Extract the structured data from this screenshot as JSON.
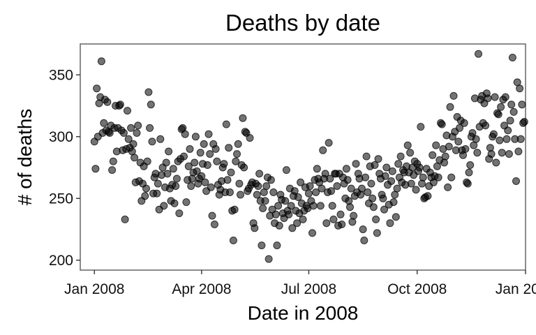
{
  "chart_data": {
    "type": "scatter",
    "title": "Deaths by date",
    "xlabel": "Date in 2008",
    "ylabel": "# of deaths",
    "x_ticks": [
      {
        "date": "2008-01-01",
        "label": "Jan 2008"
      },
      {
        "date": "2008-04-01",
        "label": "Apr 2008"
      },
      {
        "date": "2008-07-01",
        "label": "Jul 2008"
      },
      {
        "date": "2008-10-01",
        "label": "Oct 2008"
      },
      {
        "date": "2009-01-01",
        "label": "Jan 2009"
      }
    ],
    "y_ticks": [
      200,
      250,
      300,
      350
    ],
    "xlim": [
      "2007-12-20",
      "2009-01-01"
    ],
    "ylim": [
      192,
      375
    ],
    "grid": false,
    "point_color": "#000000",
    "point_opacity": 0.55,
    "points": [
      [
        "2008-01-01",
        296
      ],
      [
        "2008-01-02",
        274
      ],
      [
        "2008-01-03",
        339
      ],
      [
        "2008-01-04",
        300
      ],
      [
        "2008-01-05",
        327
      ],
      [
        "2008-01-06",
        332
      ],
      [
        "2008-01-07",
        361
      ],
      [
        "2008-01-08",
        303
      ],
      [
        "2008-01-09",
        311
      ],
      [
        "2008-01-10",
        330
      ],
      [
        "2008-01-11",
        305
      ],
      [
        "2008-01-12",
        328
      ],
      [
        "2008-01-13",
        304
      ],
      [
        "2008-01-14",
        303
      ],
      [
        "2008-01-15",
        309
      ],
      [
        "2008-01-16",
        273
      ],
      [
        "2008-01-17",
        280
      ],
      [
        "2008-01-18",
        307
      ],
      [
        "2008-01-19",
        325
      ],
      [
        "2008-01-20",
        288
      ],
      [
        "2008-01-21",
        307
      ],
      [
        "2008-01-22",
        325
      ],
      [
        "2008-01-23",
        326
      ],
      [
        "2008-01-24",
        305
      ],
      [
        "2008-01-25",
        289
      ],
      [
        "2008-01-26",
        303
      ],
      [
        "2008-01-27",
        233
      ],
      [
        "2008-01-28",
        290
      ],
      [
        "2008-01-29",
        321
      ],
      [
        "2008-01-30",
        298
      ],
      [
        "2008-01-31",
        291
      ],
      [
        "2008-02-01",
        307
      ],
      [
        "2008-02-02",
        288
      ],
      [
        "2008-02-03",
        294
      ],
      [
        "2008-02-04",
        283
      ],
      [
        "2008-02-05",
        263
      ],
      [
        "2008-02-06",
        303
      ],
      [
        "2008-02-07",
        309
      ],
      [
        "2008-02-08",
        264
      ],
      [
        "2008-02-09",
        279
      ],
      [
        "2008-02-10",
        248
      ],
      [
        "2008-02-11",
        262
      ],
      [
        "2008-02-12",
        276
      ],
      [
        "2008-02-13",
        252
      ],
      [
        "2008-02-14",
        258
      ],
      [
        "2008-02-15",
        280
      ],
      [
        "2008-02-16",
        336
      ],
      [
        "2008-02-17",
        307
      ],
      [
        "2008-02-18",
        326
      ],
      [
        "2008-02-19",
        296
      ],
      [
        "2008-02-20",
        254
      ],
      [
        "2008-02-21",
        267
      ],
      [
        "2008-02-22",
        270
      ],
      [
        "2008-02-23",
        254
      ],
      [
        "2008-02-24",
        262
      ],
      [
        "2008-02-25",
        241
      ],
      [
        "2008-02-26",
        298
      ],
      [
        "2008-02-27",
        269
      ],
      [
        "2008-02-28",
        275
      ],
      [
        "2008-02-29",
        244
      ],
      [
        "2008-03-01",
        259
      ],
      [
        "2008-03-02",
        279
      ],
      [
        "2008-03-03",
        270
      ],
      [
        "2008-03-04",
        288
      ],
      [
        "2008-03-05",
        258
      ],
      [
        "2008-03-06",
        248
      ],
      [
        "2008-03-07",
        261
      ],
      [
        "2008-03-08",
        274
      ],
      [
        "2008-03-09",
        246
      ],
      [
        "2008-03-10",
        260
      ],
      [
        "2008-03-11",
        266
      ],
      [
        "2008-03-12",
        280
      ],
      [
        "2008-03-13",
        238
      ],
      [
        "2008-03-14",
        282
      ],
      [
        "2008-03-15",
        306
      ],
      [
        "2008-03-16",
        307
      ],
      [
        "2008-03-17",
        284
      ],
      [
        "2008-03-18",
        302
      ],
      [
        "2008-03-19",
        247
      ],
      [
        "2008-03-20",
        265
      ],
      [
        "2008-03-21",
        276
      ],
      [
        "2008-03-22",
        290
      ],
      [
        "2008-03-23",
        260
      ],
      [
        "2008-03-24",
        266
      ],
      [
        "2008-03-25",
        271
      ],
      [
        "2008-03-26",
        279
      ],
      [
        "2008-03-27",
        300
      ],
      [
        "2008-03-28",
        272
      ],
      [
        "2008-03-29",
        262
      ],
      [
        "2008-03-30",
        266
      ],
      [
        "2008-03-31",
        287
      ],
      [
        "2008-04-01",
        268
      ],
      [
        "2008-04-02",
        278
      ],
      [
        "2008-04-03",
        294
      ],
      [
        "2008-04-04",
        263
      ],
      [
        "2008-04-05",
        256
      ],
      [
        "2008-04-06",
        277
      ],
      [
        "2008-04-07",
        302
      ],
      [
        "2008-04-08",
        286
      ],
      [
        "2008-04-09",
        259
      ],
      [
        "2008-04-10",
        236
      ],
      [
        "2008-04-11",
        294
      ],
      [
        "2008-04-12",
        229
      ],
      [
        "2008-04-13",
        290
      ],
      [
        "2008-04-14",
        280
      ],
      [
        "2008-04-15",
        261
      ],
      [
        "2008-04-16",
        253
      ],
      [
        "2008-04-17",
        257
      ],
      [
        "2008-04-18",
        264
      ],
      [
        "2008-04-19",
        275
      ],
      [
        "2008-04-20",
        278
      ],
      [
        "2008-04-21",
        255
      ],
      [
        "2008-04-22",
        310
      ],
      [
        "2008-04-23",
        265
      ],
      [
        "2008-04-24",
        291
      ],
      [
        "2008-04-25",
        255
      ],
      [
        "2008-04-26",
        271
      ],
      [
        "2008-04-27",
        240
      ],
      [
        "2008-04-28",
        216
      ],
      [
        "2008-04-29",
        241
      ],
      [
        "2008-04-30",
        280
      ],
      [
        "2008-05-01",
        286
      ],
      [
        "2008-05-02",
        294
      ],
      [
        "2008-05-03",
        262
      ],
      [
        "2008-05-04",
        253
      ],
      [
        "2008-05-05",
        277
      ],
      [
        "2008-05-06",
        315
      ],
      [
        "2008-05-07",
        275
      ],
      [
        "2008-05-08",
        304
      ],
      [
        "2008-05-09",
        303
      ],
      [
        "2008-05-10",
        256
      ],
      [
        "2008-05-11",
        258
      ],
      [
        "2008-05-12",
        299
      ],
      [
        "2008-05-13",
        261
      ],
      [
        "2008-05-14",
        263
      ],
      [
        "2008-05-15",
        230
      ],
      [
        "2008-05-16",
        226
      ],
      [
        "2008-05-17",
        262
      ],
      [
        "2008-05-18",
        253
      ],
      [
        "2008-05-19",
        260
      ],
      [
        "2008-05-20",
        270
      ],
      [
        "2008-05-21",
        248
      ],
      [
        "2008-05-22",
        212
      ],
      [
        "2008-05-23",
        242
      ],
      [
        "2008-05-24",
        255
      ],
      [
        "2008-05-25",
        248
      ],
      [
        "2008-05-26",
        260
      ],
      [
        "2008-05-27",
        267
      ],
      [
        "2008-05-28",
        201
      ],
      [
        "2008-05-29",
        236
      ],
      [
        "2008-05-30",
        265
      ],
      [
        "2008-05-31",
        241
      ],
      [
        "2008-06-01",
        255
      ],
      [
        "2008-06-02",
        230
      ],
      [
        "2008-06-03",
        237
      ],
      [
        "2008-06-04",
        212
      ],
      [
        "2008-06-05",
        244
      ],
      [
        "2008-06-06",
        228
      ],
      [
        "2008-06-07",
        253
      ],
      [
        "2008-06-08",
        249
      ],
      [
        "2008-06-09",
        238
      ],
      [
        "2008-06-10",
        234
      ],
      [
        "2008-06-11",
        248
      ],
      [
        "2008-06-12",
        273
      ],
      [
        "2008-06-13",
        240
      ],
      [
        "2008-06-14",
        237
      ],
      [
        "2008-06-15",
        258
      ],
      [
        "2008-06-16",
        244
      ],
      [
        "2008-06-17",
        226
      ],
      [
        "2008-06-18",
        252
      ],
      [
        "2008-06-19",
        256
      ],
      [
        "2008-06-20",
        240
      ],
      [
        "2008-06-21",
        230
      ],
      [
        "2008-06-22",
        251
      ],
      [
        "2008-06-23",
        238
      ],
      [
        "2008-06-24",
        263
      ],
      [
        "2008-06-25",
        246
      ],
      [
        "2008-06-26",
        233
      ],
      [
        "2008-06-27",
        240
      ],
      [
        "2008-06-28",
        259
      ],
      [
        "2008-06-29",
        244
      ],
      [
        "2008-06-30",
        242
      ],
      [
        "2008-07-01",
        254
      ],
      [
        "2008-07-02",
        260
      ],
      [
        "2008-07-03",
        248
      ],
      [
        "2008-07-04",
        222
      ],
      [
        "2008-07-05",
        244
      ],
      [
        "2008-07-06",
        265
      ],
      [
        "2008-07-07",
        255
      ],
      [
        "2008-07-08",
        274
      ],
      [
        "2008-07-09",
        266
      ],
      [
        "2008-07-10",
        263
      ],
      [
        "2008-07-11",
        244
      ],
      [
        "2008-07-12",
        258
      ],
      [
        "2008-07-13",
        289
      ],
      [
        "2008-07-14",
        266
      ],
      [
        "2008-07-15",
        270
      ],
      [
        "2008-07-16",
        230
      ],
      [
        "2008-07-17",
        255
      ],
      [
        "2008-07-18",
        295
      ],
      [
        "2008-07-19",
        266
      ],
      [
        "2008-07-20",
        256
      ],
      [
        "2008-07-21",
        244
      ],
      [
        "2008-07-22",
        233
      ],
      [
        "2008-07-23",
        270
      ],
      [
        "2008-07-24",
        270
      ],
      [
        "2008-07-25",
        260
      ],
      [
        "2008-07-26",
        228
      ],
      [
        "2008-07-27",
        270
      ],
      [
        "2008-07-28",
        237
      ],
      [
        "2008-07-29",
        229
      ],
      [
        "2008-07-30",
        267
      ],
      [
        "2008-07-31",
        262
      ],
      [
        "2008-08-01",
        250
      ],
      [
        "2008-08-02",
        274
      ],
      [
        "2008-08-03",
        265
      ],
      [
        "2008-08-04",
        248
      ],
      [
        "2008-08-05",
        243
      ],
      [
        "2008-08-06",
        258
      ],
      [
        "2008-08-07",
        231
      ],
      [
        "2008-08-08",
        236
      ],
      [
        "2008-08-09",
        252
      ],
      [
        "2008-08-10",
        278
      ],
      [
        "2008-08-11",
        255
      ],
      [
        "2008-08-12",
        270
      ],
      [
        "2008-08-13",
        266
      ],
      [
        "2008-08-14",
        253
      ],
      [
        "2008-08-15",
        258
      ],
      [
        "2008-08-16",
        225
      ],
      [
        "2008-08-17",
        216
      ],
      [
        "2008-08-18",
        267
      ],
      [
        "2008-08-19",
        284
      ],
      [
        "2008-08-20",
        255
      ],
      [
        "2008-08-21",
        246
      ],
      [
        "2008-08-22",
        276
      ],
      [
        "2008-08-23",
        262
      ],
      [
        "2008-08-24",
        250
      ],
      [
        "2008-08-25",
        243
      ],
      [
        "2008-08-26",
        277
      ],
      [
        "2008-08-27",
        233
      ],
      [
        "2008-08-28",
        222
      ],
      [
        "2008-08-29",
        282
      ],
      [
        "2008-08-30",
        270
      ],
      [
        "2008-08-31",
        266
      ],
      [
        "2008-09-01",
        253
      ],
      [
        "2008-09-02",
        250
      ],
      [
        "2008-09-03",
        241
      ],
      [
        "2008-09-04",
        268
      ],
      [
        "2008-09-05",
        275
      ],
      [
        "2008-09-06",
        261
      ],
      [
        "2008-09-07",
        245
      ],
      [
        "2008-09-08",
        230
      ],
      [
        "2008-09-09",
        264
      ],
      [
        "2008-09-10",
        272
      ],
      [
        "2008-09-11",
        247
      ],
      [
        "2008-09-12",
        253
      ],
      [
        "2008-09-13",
        235
      ],
      [
        "2008-09-14",
        258
      ],
      [
        "2008-09-15",
        278
      ],
      [
        "2008-09-16",
        267
      ],
      [
        "2008-09-17",
        284
      ],
      [
        "2008-09-18",
        263
      ],
      [
        "2008-09-19",
        273
      ],
      [
        "2008-09-20",
        271
      ],
      [
        "2008-09-21",
        261
      ],
      [
        "2008-09-22",
        276
      ],
      [
        "2008-09-23",
        293
      ],
      [
        "2008-09-24",
        271
      ],
      [
        "2008-09-25",
        287
      ],
      [
        "2008-09-26",
        262
      ],
      [
        "2008-09-27",
        275
      ],
      [
        "2008-09-28",
        269
      ],
      [
        "2008-09-29",
        280
      ],
      [
        "2008-09-30",
        257
      ],
      [
        "2008-10-01",
        278
      ],
      [
        "2008-10-02",
        272
      ],
      [
        "2008-10-03",
        275
      ],
      [
        "2008-10-04",
        308
      ],
      [
        "2008-10-05",
        262
      ],
      [
        "2008-10-06",
        267
      ],
      [
        "2008-10-07",
        250
      ],
      [
        "2008-10-08",
        251
      ],
      [
        "2008-10-09",
        274
      ],
      [
        "2008-10-10",
        252
      ],
      [
        "2008-10-11",
        260
      ],
      [
        "2008-10-12",
        271
      ],
      [
        "2008-10-13",
        267
      ],
      [
        "2008-10-14",
        285
      ],
      [
        "2008-10-15",
        263
      ],
      [
        "2008-10-16",
        268
      ],
      [
        "2008-10-17",
        293
      ],
      [
        "2008-10-18",
        276
      ],
      [
        "2008-10-19",
        267
      ],
      [
        "2008-10-20",
        281
      ],
      [
        "2008-10-21",
        311
      ],
      [
        "2008-10-22",
        310
      ],
      [
        "2008-10-23",
        290
      ],
      [
        "2008-10-24",
        279
      ],
      [
        "2008-10-25",
        284
      ],
      [
        "2008-10-26",
        301
      ],
      [
        "2008-10-27",
        259
      ],
      [
        "2008-10-28",
        292
      ],
      [
        "2008-10-29",
        324
      ],
      [
        "2008-10-30",
        267
      ],
      [
        "2008-10-31",
        300
      ],
      [
        "2008-11-01",
        333
      ],
      [
        "2008-11-02",
        304
      ],
      [
        "2008-11-03",
        289
      ],
      [
        "2008-11-04",
        316
      ],
      [
        "2008-11-05",
        296
      ],
      [
        "2008-11-06",
        307
      ],
      [
        "2008-11-07",
        313
      ],
      [
        "2008-11-08",
        289
      ],
      [
        "2008-11-09",
        285
      ],
      [
        "2008-11-10",
        311
      ],
      [
        "2008-11-11",
        290
      ],
      [
        "2008-11-12",
        263
      ],
      [
        "2008-11-13",
        262
      ],
      [
        "2008-11-14",
        271
      ],
      [
        "2008-11-15",
        277
      ],
      [
        "2008-11-16",
        300
      ],
      [
        "2008-11-17",
        303
      ],
      [
        "2008-11-18",
        293
      ],
      [
        "2008-11-19",
        331
      ],
      [
        "2008-11-20",
        298
      ],
      [
        "2008-11-21",
        287
      ],
      [
        "2008-11-22",
        367
      ],
      [
        "2008-11-23",
        308
      ],
      [
        "2008-11-24",
        330
      ],
      [
        "2008-11-25",
        333
      ],
      [
        "2008-11-26",
        311
      ],
      [
        "2008-11-27",
        327
      ],
      [
        "2008-11-28",
        309
      ],
      [
        "2008-11-29",
        335
      ],
      [
        "2008-11-30",
        331
      ],
      [
        "2008-12-01",
        282
      ],
      [
        "2008-12-02",
        291
      ],
      [
        "2008-12-03",
        286
      ],
      [
        "2008-12-04",
        300
      ],
      [
        "2008-12-05",
        302
      ],
      [
        "2008-12-06",
        332
      ],
      [
        "2008-12-07",
        279
      ],
      [
        "2008-12-08",
        319
      ],
      [
        "2008-12-09",
        318
      ],
      [
        "2008-12-10",
        297
      ],
      [
        "2008-12-11",
        324
      ],
      [
        "2008-12-12",
        287
      ],
      [
        "2008-12-13",
        330
      ],
      [
        "2008-12-14",
        309
      ],
      [
        "2008-12-15",
        332
      ],
      [
        "2008-12-16",
        298
      ],
      [
        "2008-12-17",
        305
      ],
      [
        "2008-12-18",
        286
      ],
      [
        "2008-12-19",
        313
      ],
      [
        "2008-12-20",
        326
      ],
      [
        "2008-12-21",
        364
      ],
      [
        "2008-12-22",
        320
      ],
      [
        "2008-12-23",
        298
      ],
      [
        "2008-12-24",
        264
      ],
      [
        "2008-12-25",
        344
      ],
      [
        "2008-12-26",
        288
      ],
      [
        "2008-12-27",
        339
      ],
      [
        "2008-12-28",
        298
      ],
      [
        "2008-12-29",
        326
      ],
      [
        "2008-12-30",
        311
      ],
      [
        "2008-12-31",
        312
      ]
    ]
  }
}
